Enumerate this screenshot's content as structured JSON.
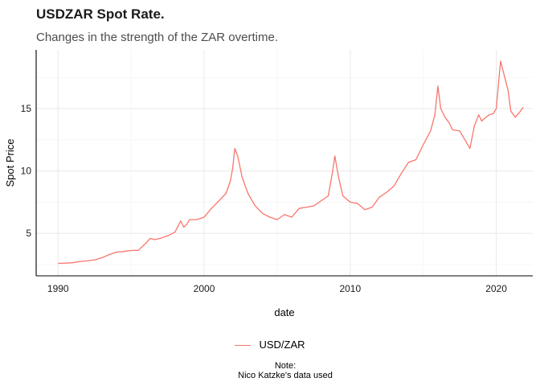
{
  "chart_data": {
    "type": "line",
    "title": "USDZAR Spot Rate.",
    "subtitle": "Changes in the strength of the ZAR overtime.",
    "xlabel": "date",
    "ylabel": "Spot Price",
    "xlim": [
      1988.5,
      2022.5
    ],
    "ylim": [
      1.6,
      19.7
    ],
    "x_ticks": [
      1990,
      2000,
      2010,
      2020
    ],
    "x_tick_labels": [
      "1990",
      "2000",
      "2010",
      "2020"
    ],
    "y_ticks": [
      5,
      10,
      15
    ],
    "y_tick_labels": [
      "5",
      "10",
      "15"
    ],
    "grid": true,
    "legend": "bottom",
    "series": [
      {
        "name": "USD/ZAR",
        "color": "#F8766D",
        "x": [
          1990.0,
          1990.5,
          1991.0,
          1991.5,
          1992.0,
          1992.5,
          1993.0,
          1993.5,
          1994.0,
          1994.5,
          1995.0,
          1995.5,
          1996.0,
          1996.3,
          1996.6,
          1997.0,
          1997.5,
          1998.0,
          1998.4,
          1998.6,
          1998.8,
          1999.0,
          1999.5,
          2000.0,
          2000.5,
          2001.0,
          2001.5,
          2001.8,
          2001.95,
          2002.1,
          2002.3,
          2002.6,
          2003.0,
          2003.5,
          2004.0,
          2004.5,
          2005.0,
          2005.5,
          2006.0,
          2006.5,
          2007.0,
          2007.5,
          2008.0,
          2008.5,
          2008.8,
          2008.95,
          2009.2,
          2009.5,
          2010.0,
          2010.5,
          2011.0,
          2011.5,
          2012.0,
          2012.5,
          2013.0,
          2013.5,
          2014.0,
          2014.5,
          2015.0,
          2015.5,
          2015.8,
          2016.0,
          2016.2,
          2016.5,
          2016.8,
          2017.0,
          2017.5,
          2018.0,
          2018.2,
          2018.5,
          2018.8,
          2019.0,
          2019.5,
          2019.8,
          2020.0,
          2020.15,
          2020.3,
          2020.6,
          2020.8,
          2021.0,
          2021.3,
          2021.6,
          2021.85
        ],
        "values": [
          2.6,
          2.62,
          2.65,
          2.75,
          2.8,
          2.88,
          3.05,
          3.3,
          3.5,
          3.55,
          3.63,
          3.65,
          4.2,
          4.6,
          4.5,
          4.6,
          4.8,
          5.1,
          6.0,
          5.5,
          5.7,
          6.1,
          6.1,
          6.3,
          7.0,
          7.6,
          8.2,
          9.2,
          10.2,
          11.8,
          11.2,
          9.5,
          8.2,
          7.2,
          6.6,
          6.3,
          6.1,
          6.5,
          6.3,
          7.0,
          7.1,
          7.2,
          7.6,
          8.0,
          10.0,
          11.2,
          9.5,
          8.0,
          7.5,
          7.4,
          6.9,
          7.1,
          7.9,
          8.3,
          8.8,
          9.8,
          10.7,
          10.9,
          12.1,
          13.2,
          14.5,
          16.8,
          15.0,
          14.3,
          13.8,
          13.3,
          13.2,
          12.2,
          11.8,
          13.6,
          14.5,
          14.0,
          14.5,
          14.6,
          15.0,
          17.0,
          18.8,
          17.4,
          16.5,
          14.8,
          14.3,
          14.7,
          15.1
        ]
      }
    ],
    "legend_label": "USD/ZAR",
    "caption_line1": "Note:",
    "caption_line2": "Nico Katzke's data used"
  }
}
